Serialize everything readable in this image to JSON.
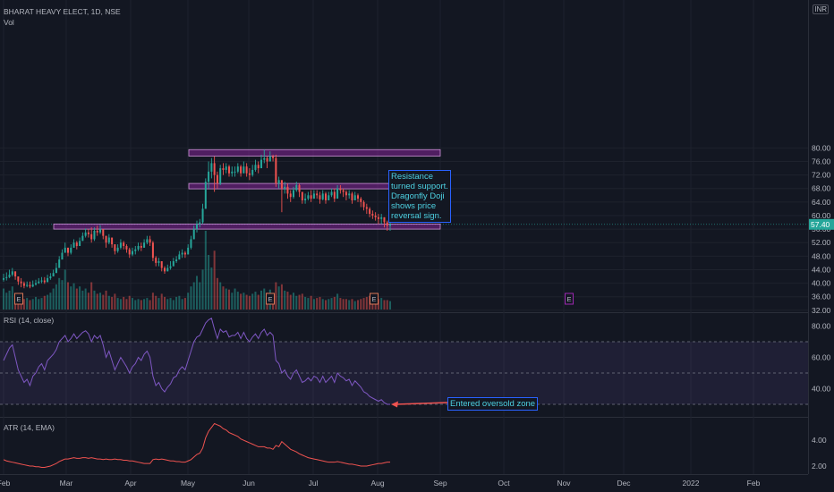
{
  "header": {
    "title": "BHARAT HEAVY ELECT, 1D, NSE",
    "vol_label": "Vol",
    "currency": "INR"
  },
  "colors": {
    "up": "#26a69a",
    "down": "#ef5350",
    "zone": "#9c27b0",
    "rsi": "#7e57c2",
    "atr": "#ef5350",
    "annotation": "#4dd0e1",
    "background": "#131722"
  },
  "price_axis": {
    "ticks": [
      "32.00",
      "36.00",
      "40.00",
      "44.00",
      "48.00",
      "52.00",
      "56.00",
      "60.00",
      "64.00",
      "68.00",
      "72.00",
      "76.00",
      "80.00"
    ],
    "last_price": "57.40"
  },
  "time_axis": {
    "labels": [
      "Feb",
      "Mar",
      "Apr",
      "May",
      "Jun",
      "Jul",
      "Aug",
      "Sep",
      "Oct",
      "Nov",
      "Dec",
      "2022",
      "Feb"
    ]
  },
  "annotations": {
    "support_note": "Resistance\nturned support.\nDragonfly Doji\nshows price\nreversal sign.",
    "rsi_note": "Entered oversold zone"
  },
  "earnings_marker": "E",
  "rsi_panel": {
    "label": "RSI (14, close)",
    "ticks": [
      "40.00",
      "60.00",
      "80.00"
    ],
    "upper_band": 70,
    "lower_band": 30,
    "mid": 50
  },
  "atr_panel": {
    "label": "ATR (14, EMA)",
    "ticks": [
      "2.00",
      "4.00"
    ]
  },
  "chart_data": [
    {
      "type": "candlestick",
      "series": "BHARAT HEAVY ELECT",
      "x_range": [
        "2021-02-01",
        "2022-02-15"
      ],
      "ylim": [
        30.5,
        81.5
      ],
      "close": [
        41.5,
        41.8,
        42.5,
        43.5,
        42.0,
        40.5,
        40.0,
        39.2,
        39.5,
        39.0,
        39.6,
        40.0,
        40.5,
        40.8,
        40.3,
        41.5,
        42.0,
        43.0,
        44.5,
        47.0,
        49.0,
        50.5,
        49.0,
        50.5,
        52.0,
        51.0,
        52.5,
        54.0,
        55.0,
        54.5,
        53.0,
        55.5,
        55.0,
        56.0,
        54.0,
        52.0,
        53.5,
        51.5,
        49.5,
        50.5,
        52.0,
        51.0,
        50.0,
        48.5,
        49.5,
        50.0,
        51.0,
        50.5,
        52.0,
        53.0,
        52.0,
        47.5,
        46.0,
        46.5,
        44.5,
        43.5,
        44.5,
        45.0,
        46.5,
        47.0,
        48.5,
        49.0,
        48.5,
        50.5,
        53.0,
        56.0,
        57.5,
        58.0,
        62.0,
        70.0,
        73.0,
        75.5,
        72.0,
        69.5,
        74.0,
        73.5,
        74.5,
        72.5,
        73.0,
        73.0,
        74.5,
        72.5,
        74.5,
        72.5,
        72.0,
        73.5,
        75.0,
        74.0,
        76.5,
        77.0,
        76.0,
        77.5,
        77.0,
        69.5,
        70.5,
        68.0,
        68.5,
        66.5,
        65.5,
        67.5,
        69.0,
        67.0,
        64.5,
        65.0,
        66.0,
        65.0,
        66.5,
        66.0,
        64.8,
        66.5,
        64.5,
        66.0,
        67.0,
        65.0,
        68.0,
        67.5,
        67.0,
        66.0,
        66.5,
        64.5,
        66.0,
        65.0,
        64.0,
        62.5,
        62.0,
        60.5,
        60.0,
        59.5,
        59.0,
        59.5,
        58.0,
        57.0,
        57.4
      ],
      "highs": [
        42.8,
        43.2,
        44.0,
        44.5,
        43.5,
        42.0,
        41.5,
        40.5,
        40.5,
        40.5,
        40.8,
        41.0,
        41.5,
        41.8,
        41.8,
        42.5,
        43.0,
        44.0,
        46.0,
        48.0,
        50.0,
        52.0,
        50.5,
        51.5,
        53.0,
        52.5,
        53.5,
        55.0,
        56.2,
        56.0,
        56.5,
        56.5,
        57.0,
        57.2,
        56.0,
        54.0,
        54.5,
        53.0,
        51.5,
        51.5,
        53.0,
        52.5,
        51.5,
        50.5,
        50.5,
        51.0,
        52.0,
        52.0,
        53.0,
        54.0,
        54.0,
        52.5,
        48.0,
        47.5,
        46.5,
        45.0,
        45.5,
        46.5,
        47.5,
        48.0,
        49.5,
        50.0,
        49.5,
        51.5,
        54.0,
        57.0,
        58.5,
        59.0,
        63.5,
        71.0,
        76.0,
        77.0,
        77.5,
        73.0,
        75.0,
        75.5,
        75.5,
        75.0,
        74.5,
        74.5,
        75.5,
        75.0,
        76.0,
        75.5,
        74.0,
        75.0,
        76.5,
        76.0,
        78.0,
        79.5,
        77.5,
        79.0,
        78.0,
        78.0,
        71.5,
        70.0,
        70.0,
        69.5,
        67.5,
        68.5,
        70.0,
        69.5,
        67.0,
        66.5,
        67.0,
        67.5,
        67.5,
        67.5,
        67.0,
        67.5,
        67.0,
        67.0,
        68.0,
        68.0,
        69.0,
        69.0,
        68.0,
        67.5,
        67.5,
        67.0,
        67.0,
        66.5,
        65.5,
        64.5,
        63.5,
        62.5,
        61.5,
        61.0,
        60.5,
        60.5,
        59.5,
        58.5,
        58.2
      ],
      "lows": [
        40.5,
        40.8,
        41.5,
        42.0,
        41.0,
        39.5,
        38.8,
        38.5,
        38.8,
        38.5,
        38.8,
        39.3,
        39.8,
        40.0,
        39.8,
        40.5,
        41.0,
        42.0,
        43.5,
        45.5,
        47.5,
        49.0,
        48.0,
        48.5,
        50.5,
        50.0,
        51.0,
        52.5,
        53.5,
        53.5,
        52.0,
        52.5,
        54.0,
        54.5,
        53.0,
        50.5,
        51.5,
        50.5,
        48.5,
        49.0,
        50.0,
        50.0,
        49.0,
        47.5,
        48.0,
        48.5,
        49.5,
        49.5,
        50.5,
        51.5,
        51.0,
        46.5,
        45.0,
        45.0,
        43.5,
        42.8,
        43.5,
        44.0,
        45.5,
        46.0,
        47.0,
        47.5,
        47.5,
        48.5,
        50.0,
        53.0,
        55.0,
        56.5,
        57.5,
        62.0,
        68.0,
        71.0,
        67.0,
        68.0,
        69.0,
        72.0,
        72.5,
        71.5,
        71.5,
        71.5,
        72.5,
        71.5,
        72.5,
        71.5,
        70.5,
        71.5,
        73.0,
        72.5,
        74.0,
        75.5,
        74.0,
        76.0,
        76.0,
        68.5,
        68.0,
        61.0,
        66.5,
        65.0,
        64.0,
        65.0,
        67.0,
        65.5,
        63.5,
        63.5,
        64.5,
        64.0,
        65.0,
        65.0,
        63.5,
        64.5,
        63.5,
        64.5,
        65.5,
        64.0,
        66.0,
        66.5,
        65.5,
        64.5,
        65.0,
        63.5,
        64.5,
        64.0,
        62.5,
        61.5,
        60.5,
        59.5,
        59.0,
        58.5,
        57.5,
        57.5,
        56.5,
        55.5,
        55.5
      ],
      "volume": [
        2.0,
        1.6,
        1.8,
        2.2,
        1.5,
        1.3,
        1.2,
        1.0,
        1.1,
        0.9,
        1.0,
        1.2,
        1.0,
        1.1,
        1.3,
        1.4,
        1.6,
        2.0,
        2.4,
        3.0,
        2.8,
        3.8,
        2.6,
        2.2,
        2.5,
        2.0,
        2.2,
        1.8,
        2.0,
        1.6,
        2.6,
        1.8,
        1.5,
        1.6,
        1.4,
        1.8,
        1.3,
        1.2,
        1.5,
        1.1,
        1.0,
        1.2,
        1.0,
        1.3,
        1.1,
        0.9,
        1.0,
        0.9,
        1.0,
        1.1,
        0.9,
        1.6,
        1.3,
        1.1,
        1.5,
        1.2,
        1.0,
        1.1,
        0.9,
        1.2,
        1.3,
        1.0,
        1.1,
        1.6,
        2.2,
        2.6,
        3.2,
        2.6,
        3.8,
        7.5,
        5.2,
        4.0,
        5.6,
        3.0,
        2.6,
        2.2,
        2.0,
        1.9,
        1.6,
        2.0,
        1.7,
        1.5,
        1.6,
        1.4,
        1.3,
        1.5,
        1.7,
        1.4,
        1.8,
        2.0,
        1.6,
        1.9,
        1.5,
        2.6,
        2.2,
        2.4,
        1.8,
        1.7,
        1.4,
        1.6,
        1.3,
        1.4,
        1.5,
        1.2,
        1.1,
        1.3,
        1.0,
        1.1,
        1.2,
        1.0,
        0.9,
        1.0,
        1.1,
        1.2,
        1.5,
        1.1,
        1.0,
        1.0,
        0.9,
        1.0,
        0.8,
        0.9,
        1.0,
        1.1,
        1.2,
        1.3,
        1.1,
        1.2,
        1.0,
        1.1,
        0.9,
        0.9,
        0.8
      ],
      "resistance_support_zones": [
        {
          "from": 56.0,
          "to": 57.5
        },
        {
          "from": 67.9,
          "to": 69.5
        },
        {
          "from": 77.6,
          "to": 79.5
        }
      ],
      "earnings_events": [
        "Feb",
        "Jun",
        "Aug",
        "Oct"
      ]
    },
    {
      "type": "line",
      "series": "RSI (14, close)",
      "ylim": [
        18,
        88
      ],
      "values": [
        58,
        62,
        66,
        68,
        60,
        52,
        48,
        44,
        46,
        42,
        48,
        50,
        54,
        56,
        52,
        58,
        60,
        62,
        65,
        70,
        72,
        74,
        70,
        72,
        75,
        72,
        74,
        76,
        77,
        75,
        70,
        74,
        72,
        74,
        68,
        60,
        64,
        58,
        52,
        56,
        60,
        57,
        54,
        50,
        54,
        56,
        60,
        58,
        62,
        64,
        60,
        48,
        42,
        44,
        40,
        38,
        41,
        43,
        47,
        48,
        52,
        54,
        52,
        58,
        64,
        70,
        73,
        74,
        78,
        82,
        84,
        85,
        78,
        72,
        78,
        76,
        77,
        73,
        74,
        74,
        76,
        72,
        76,
        72,
        70,
        73,
        75,
        72,
        76,
        78,
        74,
        76,
        74,
        58,
        56,
        50,
        52,
        48,
        46,
        50,
        52,
        48,
        44,
        45,
        47,
        45,
        48,
        47,
        44,
        48,
        44,
        46,
        48,
        44,
        50,
        48,
        47,
        45,
        46,
        42,
        45,
        43,
        41,
        38,
        37,
        35,
        34,
        33,
        32,
        33,
        31,
        30,
        30
      ]
    },
    {
      "type": "line",
      "series": "ATR (14, EMA)",
      "ylim": [
        1.4,
        5.7
      ],
      "values": [
        2.5,
        2.4,
        2.35,
        2.3,
        2.25,
        2.2,
        2.15,
        2.1,
        2.05,
        2.0,
        2.0,
        1.95,
        1.95,
        1.9,
        1.9,
        1.95,
        2.0,
        2.1,
        2.2,
        2.35,
        2.45,
        2.55,
        2.55,
        2.6,
        2.65,
        2.6,
        2.6,
        2.65,
        2.65,
        2.6,
        2.65,
        2.6,
        2.55,
        2.55,
        2.5,
        2.55,
        2.5,
        2.5,
        2.55,
        2.5,
        2.5,
        2.45,
        2.45,
        2.4,
        2.4,
        2.35,
        2.3,
        2.25,
        2.2,
        2.2,
        2.2,
        2.5,
        2.55,
        2.5,
        2.55,
        2.5,
        2.45,
        2.4,
        2.4,
        2.35,
        2.35,
        2.3,
        2.3,
        2.4,
        2.5,
        2.7,
        2.9,
        3.0,
        3.4,
        4.2,
        4.7,
        5.0,
        5.3,
        5.2,
        5.1,
        4.9,
        4.8,
        4.6,
        4.5,
        4.4,
        4.3,
        4.1,
        4.0,
        3.9,
        3.8,
        3.7,
        3.6,
        3.5,
        3.5,
        3.5,
        3.4,
        3.4,
        3.3,
        3.6,
        3.5,
        3.9,
        3.7,
        3.5,
        3.3,
        3.2,
        3.1,
        2.95,
        2.85,
        2.75,
        2.65,
        2.6,
        2.55,
        2.5,
        2.45,
        2.4,
        2.35,
        2.3,
        2.3,
        2.3,
        2.35,
        2.3,
        2.25,
        2.2,
        2.15,
        2.15,
        2.1,
        2.05,
        2.0,
        2.0,
        2.0,
        2.05,
        2.1,
        2.15,
        2.2,
        2.2,
        2.25,
        2.3,
        2.3
      ]
    }
  ]
}
